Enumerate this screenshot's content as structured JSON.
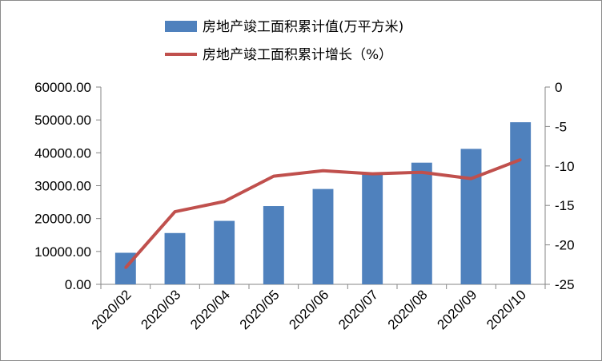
{
  "chart_data": {
    "type": "bar+line",
    "categories": [
      "2020/02",
      "2020/03",
      "2020/04",
      "2020/05",
      "2020/06",
      "2020/07",
      "2020/08",
      "2020/09",
      "2020/10"
    ],
    "series": [
      {
        "name": "房地产竣工面积累计值(万平方米)",
        "type": "bar",
        "axis": "left",
        "color": "#4f81bd",
        "values": [
          9600,
          15600,
          19300,
          23800,
          29000,
          33500,
          37000,
          41200,
          49300
        ]
      },
      {
        "name": "房地产竣工面积累计增长（%）",
        "type": "line",
        "axis": "right",
        "color": "#c0504d",
        "values": [
          -22.9,
          -15.8,
          -14.5,
          -11.3,
          -10.6,
          -11.0,
          -10.8,
          -11.6,
          -9.2
        ]
      }
    ],
    "y_left": {
      "range": [
        0,
        60000
      ],
      "ticks": [
        "0.00",
        "10000.00",
        "20000.00",
        "30000.00",
        "40000.00",
        "50000.00",
        "60000.00"
      ]
    },
    "y_right": {
      "range": [
        -25,
        0
      ],
      "ticks": [
        "0",
        "-5",
        "-10",
        "-15",
        "-20",
        "-25"
      ]
    },
    "grid": false,
    "legend_position": "top"
  }
}
